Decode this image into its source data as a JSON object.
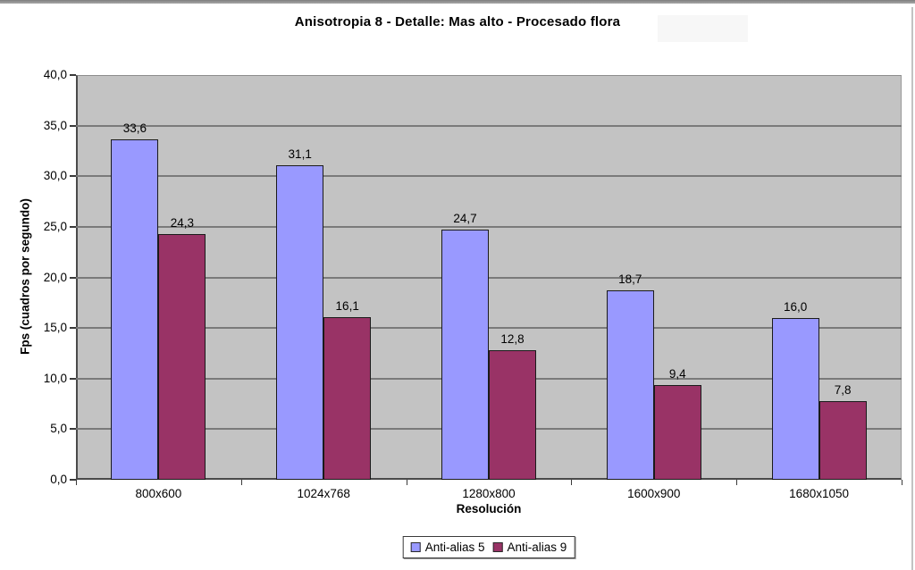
{
  "window": {
    "top_bar_color": "#8f8f8f",
    "right_edge_color": "#c2c2c2"
  },
  "chart_data": {
    "type": "bar",
    "title": "Anisotropia 8 - Detalle: Mas alto - Procesado flora",
    "xlabel": "Resolución",
    "ylabel": "Fps (cuadros por segundo)",
    "categories": [
      "800x600",
      "1024x768",
      "1280x800",
      "1600x900",
      "1680x1050"
    ],
    "series": [
      {
        "name": "Anti-alias 5",
        "color": "#9999FF",
        "values": [
          33.6,
          31.1,
          24.7,
          18.7,
          16.0
        ]
      },
      {
        "name": "Anti-alias 9",
        "color": "#993366",
        "values": [
          24.3,
          16.1,
          12.8,
          9.4,
          7.8
        ]
      }
    ],
    "ylim": [
      0,
      40
    ],
    "ytick_step": 5,
    "decimal_separator": ",",
    "grid": true,
    "legend_position": "bottom",
    "plot_background": "#C0C0C0",
    "gridline_color": "#7a7a7a",
    "bar_border_color": "#1a1a1a"
  }
}
